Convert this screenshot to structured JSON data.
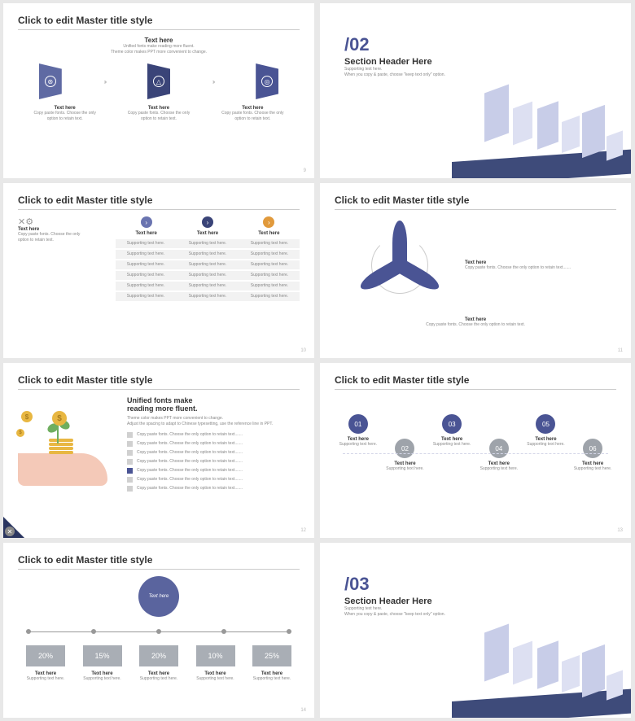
{
  "colors": {
    "primary": "#4a5494",
    "dark": "#2a3560",
    "accent": "#e19a3c",
    "grey": "#9ea3aa",
    "light": "#c8cde8"
  },
  "common": {
    "master_title": "Click to edit Master title style",
    "text_here": "Text here",
    "copy_paste": "Copy paste fonts. Choose the only option to retain text.",
    "copy_paste_long": "Copy paste fonts. Choose the only option to retain text.......",
    "supporting": "Supporting text here."
  },
  "s1": {
    "subtitle1": "Unified fonts make reading more fluent.",
    "subtitle2": "Theme color makes PPT more convenient to change.",
    "flag_colors": [
      "#5f6aa3",
      "#3a4478",
      "#4a5494"
    ],
    "page": "9"
  },
  "s2": {
    "num": "/02",
    "header": "Section Header Here",
    "sub1": "Supporting text here.",
    "sub2": "When you copy & paste, choose \"keep text only\" option."
  },
  "s3": {
    "dot_colors": [
      "#6a74b0",
      "#3a4478",
      "#e19a3c"
    ],
    "rows": 6,
    "page": "10"
  },
  "s4": {
    "page": "11"
  },
  "s5": {
    "heading1": "Unified fonts make",
    "heading2": "reading more fluent.",
    "sub1": "Theme color makes PPT more convenient to change.",
    "sub2": "Adjust the spacing to adapt to Chinese typesetting, use the reference line in PPT.",
    "items": 7,
    "active": 4,
    "page": "12"
  },
  "s6": {
    "nums": [
      "01",
      "02",
      "03",
      "04",
      "05",
      "06"
    ],
    "colors": [
      "#4a5494",
      "#9ea3aa",
      "#4a5494",
      "#9ea3aa",
      "#4a5494",
      "#9ea3aa"
    ],
    "page": "13"
  },
  "s7": {
    "center": "Text here",
    "pcts": [
      "20%",
      "15%",
      "20%",
      "10%",
      "25%"
    ],
    "page": "14"
  },
  "s8": {
    "num": "/03",
    "header": "Section Header Here",
    "sub1": "Supporting text here.",
    "sub2": "When you copy & paste, choose \"keep text only\" option."
  }
}
